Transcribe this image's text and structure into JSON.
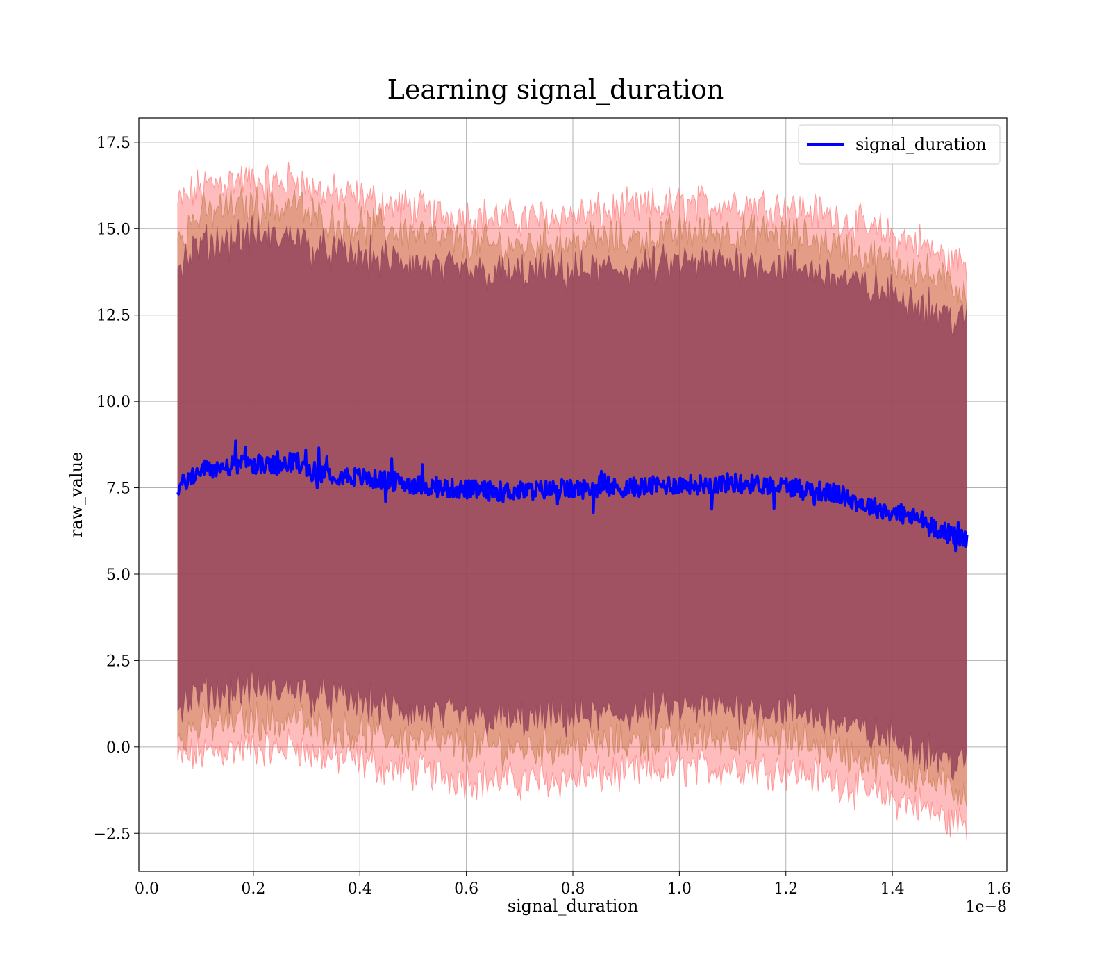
{
  "chart_data": {
    "type": "line",
    "title": "Learning signal_duration",
    "xlabel": "signal_duration",
    "ylabel": "raw_value",
    "x_offset_label": "1e−8",
    "xlim": [
      -0.015,
      1.615
    ],
    "ylim": [
      -3.6,
      18.2
    ],
    "x_ticks": [
      0.0,
      0.2,
      0.4,
      0.6,
      0.8,
      1.0,
      1.2,
      1.4,
      1.6
    ],
    "x_tick_labels": [
      "0.0",
      "0.2",
      "0.4",
      "0.6",
      "0.8",
      "1.0",
      "1.2",
      "1.4",
      "1.6"
    ],
    "y_ticks": [
      -2.5,
      0.0,
      2.5,
      5.0,
      7.5,
      10.0,
      12.5,
      15.0,
      17.5
    ],
    "y_tick_labels": [
      "−2.5",
      "0.0",
      "2.5",
      "5.0",
      "7.5",
      "10.0",
      "12.5",
      "15.0",
      "17.5"
    ],
    "grid": true,
    "legend_position": "top-right",
    "series": [
      {
        "name": "signal_duration",
        "color": "#0000ff",
        "x": [
          0.058,
          0.1,
          0.15,
          0.2,
          0.25,
          0.28,
          0.3,
          0.35,
          0.4,
          0.45,
          0.5,
          0.55,
          0.6,
          0.65,
          0.7,
          0.75,
          0.8,
          0.85,
          0.9,
          0.95,
          1.0,
          1.05,
          1.1,
          1.15,
          1.2,
          1.25,
          1.3,
          1.35,
          1.4,
          1.45,
          1.5,
          1.54
        ],
        "y": [
          7.5,
          8.0,
          8.1,
          8.2,
          8.1,
          8.3,
          8.0,
          7.9,
          7.8,
          7.7,
          7.6,
          7.5,
          7.45,
          7.4,
          7.4,
          7.45,
          7.45,
          7.5,
          7.5,
          7.55,
          7.6,
          7.6,
          7.65,
          7.6,
          7.55,
          7.45,
          7.3,
          7.0,
          6.8,
          6.6,
          6.2,
          6.0
        ]
      }
    ],
    "bands": [
      {
        "role": "outer-band",
        "color": "#ff6a6a",
        "x": [
          0.058,
          0.1,
          0.15,
          0.2,
          0.25,
          0.28,
          0.3,
          0.35,
          0.4,
          0.45,
          0.5,
          0.55,
          0.6,
          0.65,
          0.7,
          0.75,
          0.8,
          0.85,
          0.9,
          0.95,
          1.0,
          1.05,
          1.1,
          1.15,
          1.2,
          1.25,
          1.3,
          1.35,
          1.4,
          1.45,
          1.5,
          1.54
        ],
        "upper": [
          15.7,
          16.2,
          16.4,
          16.4,
          16.3,
          16.5,
          16.2,
          16.0,
          15.9,
          15.7,
          15.6,
          15.4,
          15.4,
          15.3,
          15.3,
          15.35,
          15.4,
          15.45,
          15.55,
          15.6,
          15.7,
          15.7,
          15.75,
          15.7,
          15.65,
          15.5,
          15.3,
          15.0,
          14.8,
          14.6,
          14.1,
          14.0
        ],
        "lower": [
          -0.4,
          -0.2,
          -0.1,
          0.0,
          -0.1,
          0.1,
          -0.2,
          -0.3,
          -0.4,
          -0.6,
          -0.7,
          -0.8,
          -0.9,
          -0.95,
          -1.0,
          -0.95,
          -0.9,
          -0.85,
          -0.75,
          -0.7,
          -0.6,
          -0.6,
          -0.55,
          -0.6,
          -0.65,
          -0.8,
          -1.0,
          -1.3,
          -1.5,
          -1.7,
          -2.1,
          -2.2
        ]
      },
      {
        "role": "middle-band",
        "color": "#c07848",
        "x": [
          0.058,
          0.1,
          0.15,
          0.2,
          0.25,
          0.28,
          0.3,
          0.35,
          0.4,
          0.45,
          0.5,
          0.55,
          0.6,
          0.65,
          0.7,
          0.75,
          0.8,
          0.85,
          0.9,
          0.95,
          1.0,
          1.05,
          1.1,
          1.15,
          1.2,
          1.25,
          1.3,
          1.35,
          1.4,
          1.45,
          1.5,
          1.54
        ],
        "upper": [
          14.8,
          15.4,
          15.6,
          15.7,
          15.6,
          15.8,
          15.4,
          15.2,
          15.1,
          15.0,
          14.9,
          14.7,
          14.6,
          14.5,
          14.5,
          14.6,
          14.6,
          14.7,
          14.7,
          14.8,
          14.9,
          14.9,
          14.9,
          14.85,
          14.8,
          14.7,
          14.5,
          14.2,
          14.0,
          13.8,
          13.4,
          13.2
        ],
        "lower": [
          0.3,
          0.6,
          0.7,
          0.8,
          0.7,
          0.9,
          0.6,
          0.5,
          0.4,
          0.3,
          0.2,
          0.1,
          0.05,
          0.0,
          -0.05,
          0.0,
          0.05,
          0.1,
          0.15,
          0.2,
          0.25,
          0.25,
          0.3,
          0.25,
          0.2,
          0.1,
          -0.1,
          -0.4,
          -0.6,
          -0.8,
          -1.2,
          -1.3
        ]
      },
      {
        "role": "inner-band",
        "color": "#8b3a55",
        "x": [
          0.058,
          0.1,
          0.15,
          0.2,
          0.25,
          0.28,
          0.3,
          0.35,
          0.4,
          0.45,
          0.5,
          0.55,
          0.6,
          0.65,
          0.7,
          0.75,
          0.8,
          0.85,
          0.9,
          0.95,
          1.0,
          1.05,
          1.1,
          1.15,
          1.2,
          1.25,
          1.3,
          1.35,
          1.4,
          1.45,
          1.5,
          1.54
        ],
        "upper": [
          13.9,
          14.5,
          14.7,
          14.8,
          14.7,
          14.9,
          14.5,
          14.3,
          14.2,
          14.1,
          14.0,
          13.8,
          13.75,
          13.7,
          13.7,
          13.75,
          13.75,
          13.8,
          13.85,
          13.9,
          14.0,
          14.0,
          14.05,
          14.0,
          13.9,
          13.8,
          13.6,
          13.3,
          13.1,
          12.9,
          12.5,
          12.3
        ],
        "lower": [
          1.1,
          1.5,
          1.6,
          1.7,
          1.6,
          1.8,
          1.5,
          1.4,
          1.3,
          1.1,
          1.0,
          0.9,
          0.85,
          0.8,
          0.75,
          0.8,
          0.85,
          0.9,
          0.95,
          1.0,
          1.1,
          1.1,
          1.15,
          1.1,
          1.05,
          0.9,
          0.7,
          0.4,
          0.2,
          0.0,
          -0.4,
          -0.5
        ]
      }
    ]
  }
}
